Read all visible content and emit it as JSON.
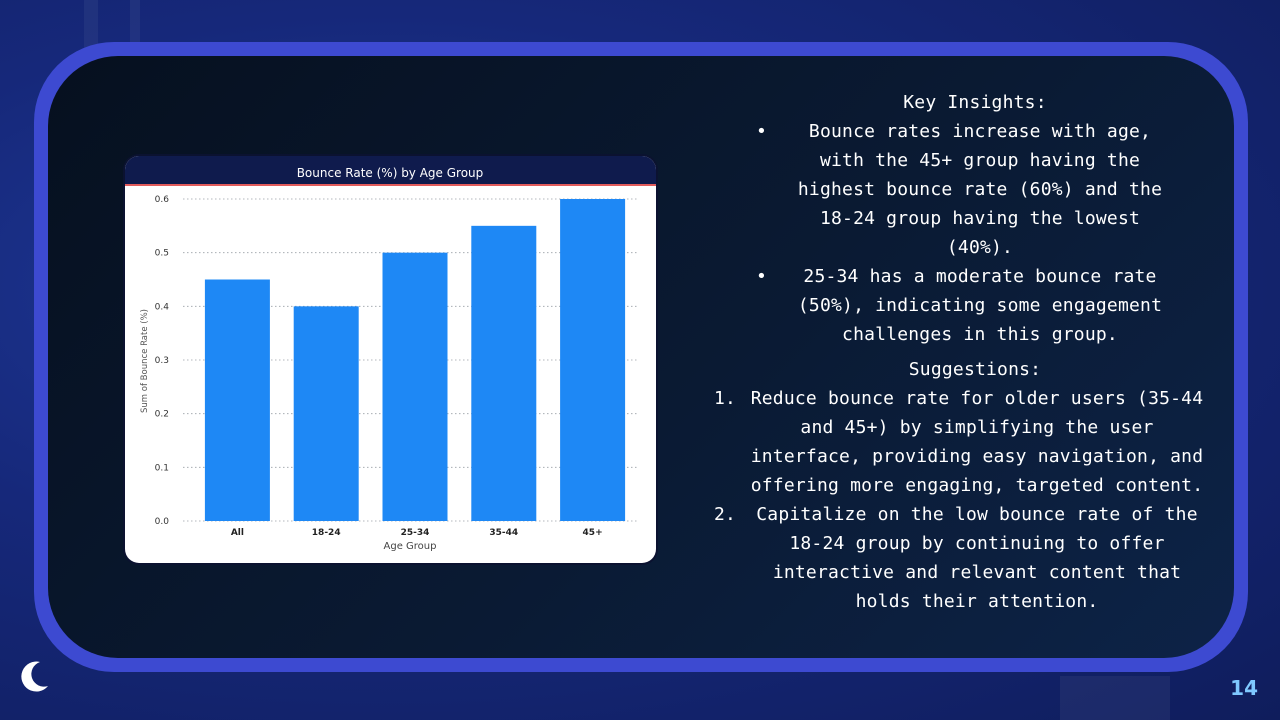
{
  "slide": {
    "page_number": "14",
    "key_insights_heading": "Key Insights:",
    "insights": [
      "Bounce rates increase with age, with the 45+ group having the highest bounce rate (60%) and the 18-24 group having the lowest (40%).",
      "25-34 has a moderate bounce rate (50%), indicating some engagement challenges in this group."
    ],
    "suggestions_heading": "Suggestions:",
    "suggestions": [
      {
        "num": "1.",
        "text": "Reduce bounce rate for older users (35-44 and 45+) by simplifying the user interface, providing easy navigation, and offering more engaging, targeted content."
      },
      {
        "num": "2.",
        "text": "Capitalize on the low bounce rate of the 18-24 group by continuing to offer interactive and relevant content that holds their attention."
      }
    ]
  },
  "colors": {
    "bar": "#1e88f5",
    "chart_header": "#0f1b4d",
    "header_line": "#e25c5c",
    "frame": "#3d4ad1",
    "page_number": "#7fc8ff"
  },
  "chart_data": {
    "type": "bar",
    "title": "Bounce Rate (%) by Age Group",
    "xlabel": "Age Group",
    "ylabel": "Sum of Bounce Rate (%)",
    "categories": [
      "All",
      "18-24",
      "25-34",
      "35-44",
      "45+"
    ],
    "values": [
      0.45,
      0.4,
      0.5,
      0.55,
      0.6
    ],
    "yticks": [
      "0.0",
      "0.1",
      "0.2",
      "0.3",
      "0.4",
      "0.5",
      "0.6"
    ],
    "ylim": [
      0,
      0.6
    ],
    "grid": true
  }
}
